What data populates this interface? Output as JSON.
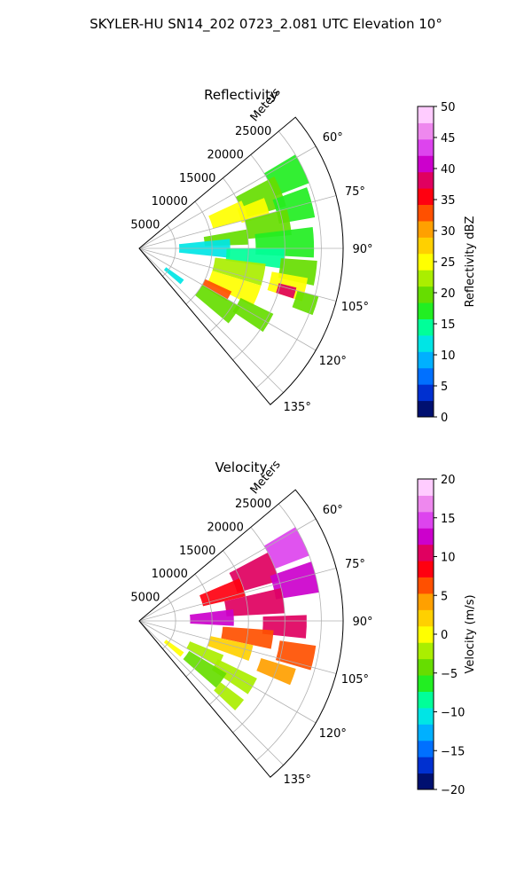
{
  "figure_title": "SKYLER-HU  SN14_202  0723_2.081 UTC Elevation 10°",
  "chart_data": [
    {
      "type": "heatmap",
      "subtype": "polar-sector (PPI)",
      "title": "Reflectivity",
      "radial_label": "Meters",
      "radial_ticks": [
        5000,
        10000,
        15000,
        20000,
        25000
      ],
      "radial_tick_labels": [
        "5000",
        "10000",
        "15000",
        "20000",
        "25000"
      ],
      "r_max": 28000,
      "azimuth_range": [
        50,
        140
      ],
      "angle_ticks": [
        60,
        75,
        90,
        105,
        120,
        135
      ],
      "angle_tick_labels": [
        "60°",
        "75°",
        "90°",
        "105°",
        "120°",
        "135°"
      ],
      "colorbar": {
        "label": "Reflectivity dBZ",
        "range": [
          0,
          50
        ],
        "ticks": [
          0,
          5,
          10,
          15,
          20,
          25,
          30,
          35,
          40,
          45,
          50
        ],
        "tick_labels": [
          "0",
          "5",
          "10",
          "15",
          "20",
          "25",
          "30",
          "35",
          "40",
          "45",
          "50"
        ],
        "colors": [
          "#001070",
          "#0030d0",
          "#0070ff",
          "#00b0ff",
          "#00e5e5",
          "#00ff99",
          "#22ee22",
          "#66dd00",
          "#aaee00",
          "#ffff00",
          "#ffd000",
          "#ffa000",
          "#ff5000",
          "#ff0010",
          "#e00060",
          "#cc00cc",
          "#dd44ee",
          "#ee88ee",
          "#ffccff"
        ]
      },
      "cells": [
        {
          "az": 64,
          "r": 22500,
          "daz": 10,
          "dr": 5000,
          "value": 18
        },
        {
          "az": 68,
          "r": 18000,
          "daz": 12,
          "dr": 6000,
          "value": 20
        },
        {
          "az": 70,
          "r": 13000,
          "daz": 10,
          "dr": 5000,
          "value": 24
        },
        {
          "az": 72,
          "r": 16500,
          "daz": 8,
          "dr": 4000,
          "value": 26
        },
        {
          "az": 75,
          "r": 22000,
          "daz": 10,
          "dr": 5000,
          "value": 17
        },
        {
          "az": 80,
          "r": 18000,
          "daz": 10,
          "dr": 6000,
          "value": 19
        },
        {
          "az": 84,
          "r": 12000,
          "daz": 8,
          "dr": 6000,
          "value": 21
        },
        {
          "az": 88,
          "r": 20000,
          "daz": 10,
          "dr": 8000,
          "value": 16
        },
        {
          "az": 90,
          "r": 9000,
          "daz": 12,
          "dr": 7000,
          "value": 13
        },
        {
          "az": 94,
          "r": 16000,
          "daz": 8,
          "dr": 8000,
          "value": 15
        },
        {
          "az": 98,
          "r": 22000,
          "daz": 8,
          "dr": 5000,
          "value": 20
        },
        {
          "az": 102,
          "r": 14000,
          "daz": 10,
          "dr": 7000,
          "value": 22
        },
        {
          "az": 104,
          "r": 21000,
          "daz": 8,
          "dr": 5000,
          "value": 25
        },
        {
          "az": 106,
          "r": 21000,
          "daz": 4,
          "dr": 2500,
          "value": 39
        },
        {
          "az": 108,
          "r": 24000,
          "daz": 6,
          "dr": 3000,
          "value": 21
        },
        {
          "az": 112,
          "r": 14000,
          "daz": 10,
          "dr": 7000,
          "value": 24
        },
        {
          "az": 118,
          "r": 12000,
          "daz": 6,
          "dr": 4000,
          "value": 34
        },
        {
          "az": 120,
          "r": 18000,
          "daz": 8,
          "dr": 5000,
          "value": 19
        },
        {
          "az": 125,
          "r": 13000,
          "daz": 10,
          "dr": 6000,
          "value": 20
        },
        {
          "az": 128,
          "r": 6000,
          "daz": 6,
          "dr": 3000,
          "value": 12
        }
      ]
    },
    {
      "type": "heatmap",
      "subtype": "polar-sector (PPI)",
      "title": "Velocity",
      "radial_label": "Meters",
      "radial_ticks": [
        5000,
        10000,
        15000,
        20000,
        25000
      ],
      "radial_tick_labels": [
        "5000",
        "10000",
        "15000",
        "20000",
        "25000"
      ],
      "r_max": 28000,
      "azimuth_range": [
        50,
        140
      ],
      "angle_ticks": [
        60,
        75,
        90,
        105,
        120,
        135
      ],
      "angle_tick_labels": [
        "60°",
        "75°",
        "90°",
        "105°",
        "120°",
        "135°"
      ],
      "colorbar": {
        "label": "Velocity (m/s)",
        "range": [
          -20,
          20
        ],
        "ticks": [
          -20,
          -15,
          -10,
          -5,
          0,
          5,
          10,
          15,
          20
        ],
        "tick_labels": [
          "−20",
          "−15",
          "−10",
          "−5",
          "0",
          "5",
          "10",
          "15",
          "20"
        ],
        "colors": [
          "#001070",
          "#0030d0",
          "#0070ff",
          "#00b0ff",
          "#00e5e5",
          "#00ff99",
          "#22ee22",
          "#66dd00",
          "#aaee00",
          "#ffff00",
          "#ffd000",
          "#ffa000",
          "#ff5000",
          "#ff0010",
          "#e00060",
          "#cc00cc",
          "#dd44ee",
          "#ee88ee",
          "#ffccff"
        ]
      },
      "cells": [
        {
          "az": 64,
          "r": 22500,
          "daz": 10,
          "dr": 5000,
          "value": 14
        },
        {
          "az": 68,
          "r": 17000,
          "daz": 12,
          "dr": 6000,
          "value": 10
        },
        {
          "az": 72,
          "r": 12000,
          "daz": 10,
          "dr": 6000,
          "value": 8
        },
        {
          "az": 76,
          "r": 22000,
          "daz": 10,
          "dr": 6000,
          "value": 13
        },
        {
          "az": 82,
          "r": 16000,
          "daz": 10,
          "dr": 8000,
          "value": 11
        },
        {
          "az": 88,
          "r": 10000,
          "daz": 10,
          "dr": 6000,
          "value": 12
        },
        {
          "az": 92,
          "r": 20000,
          "daz": 8,
          "dr": 6000,
          "value": 10
        },
        {
          "az": 98,
          "r": 15000,
          "daz": 8,
          "dr": 7000,
          "value": 6
        },
        {
          "az": 102,
          "r": 22000,
          "daz": 8,
          "dr": 5000,
          "value": 7
        },
        {
          "az": 106,
          "r": 13000,
          "daz": 8,
          "dr": 6000,
          "value": 2
        },
        {
          "az": 110,
          "r": 20000,
          "daz": 6,
          "dr": 5000,
          "value": 4
        },
        {
          "az": 116,
          "r": 10000,
          "daz": 8,
          "dr": 5000,
          "value": -2
        },
        {
          "az": 120,
          "r": 15000,
          "daz": 8,
          "dr": 6000,
          "value": -3
        },
        {
          "az": 126,
          "r": 11000,
          "daz": 10,
          "dr": 6000,
          "value": -4
        },
        {
          "az": 130,
          "r": 16000,
          "daz": 6,
          "dr": 4000,
          "value": -2
        },
        {
          "az": 128,
          "r": 6000,
          "daz": 6,
          "dr": 3000,
          "value": 1
        }
      ]
    }
  ]
}
